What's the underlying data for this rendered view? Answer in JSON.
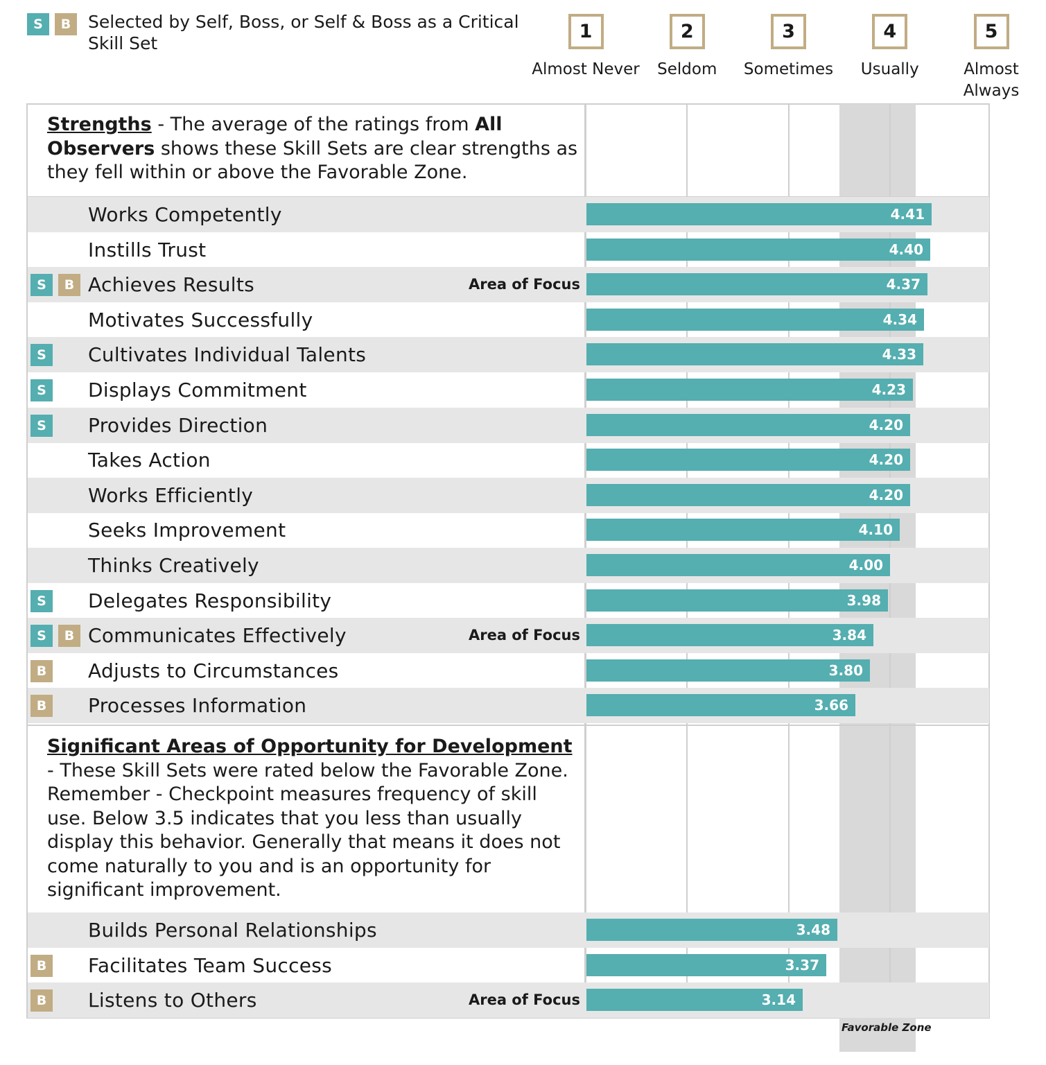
{
  "legend": {
    "badge_s": "S",
    "badge_b": "B",
    "text": "Selected by Self, Boss, or Self & Boss as a Critical Skill Set"
  },
  "scale": [
    {
      "num": "1",
      "label": "Almost Never"
    },
    {
      "num": "2",
      "label": "Seldom"
    },
    {
      "num": "3",
      "label": "Sometimes"
    },
    {
      "num": "4",
      "label": "Usually"
    },
    {
      "num": "5",
      "label": "Almost Always"
    }
  ],
  "strengths": {
    "heading": "Strengths",
    "text_1": " - The average of the ratings from ",
    "bold": "All Observers",
    "text_2": " shows these Skill Sets are clear strengths as they fell within or above the Favorable Zone."
  },
  "opportunities": {
    "heading": "Significant Areas of Opportunity for Development",
    "text": " - These Skill Sets were rated below the Favorable Zone. Remember - Checkpoint measures frequency of skill use. Below 3.5 indicates that you less than usually display this behavior. Generally that means it does not come naturally to you and is an opportunity for significant improvement."
  },
  "focus_label": "Area of Focus",
  "favorable_zone_label": "Favorable Zone",
  "colors": {
    "bar": "#55aeb0",
    "self_badge": "#55aeb0",
    "boss_badge": "#c1ac84",
    "zone": "#d9d9d9",
    "row_shade": "#e6e6e6"
  },
  "chart_data": {
    "type": "bar",
    "orientation": "horizontal",
    "xlim": [
      1,
      5
    ],
    "favorable_zone": [
      3.5,
      4.25
    ],
    "ticks": [
      1,
      2,
      3,
      4,
      5
    ],
    "groups": [
      {
        "name": "Strengths",
        "items": [
          {
            "name": "Works Competently",
            "value": 4.41,
            "value_label": "4.41",
            "self": false,
            "boss": false,
            "focus": false
          },
          {
            "name": "Instills Trust",
            "value": 4.4,
            "value_label": "4.40",
            "self": false,
            "boss": false,
            "focus": false
          },
          {
            "name": "Achieves Results",
            "value": 4.37,
            "value_label": "4.37",
            "self": true,
            "boss": true,
            "focus": true
          },
          {
            "name": "Motivates Successfully",
            "value": 4.34,
            "value_label": "4.34",
            "self": false,
            "boss": false,
            "focus": false
          },
          {
            "name": "Cultivates Individual Talents",
            "value": 4.33,
            "value_label": "4.33",
            "self": true,
            "boss": false,
            "focus": false
          },
          {
            "name": "Displays Commitment",
            "value": 4.23,
            "value_label": "4.23",
            "self": true,
            "boss": false,
            "focus": false
          },
          {
            "name": "Provides Direction",
            "value": 4.2,
            "value_label": "4.20",
            "self": true,
            "boss": false,
            "focus": false
          },
          {
            "name": "Takes Action",
            "value": 4.2,
            "value_label": "4.20",
            "self": false,
            "boss": false,
            "focus": false
          },
          {
            "name": "Works Efficiently",
            "value": 4.2,
            "value_label": "4.20",
            "self": false,
            "boss": false,
            "focus": false
          },
          {
            "name": "Seeks Improvement",
            "value": 4.1,
            "value_label": "4.10",
            "self": false,
            "boss": false,
            "focus": false
          },
          {
            "name": "Thinks Creatively",
            "value": 4.0,
            "value_label": "4.00",
            "self": false,
            "boss": false,
            "focus": false
          },
          {
            "name": "Delegates Responsibility",
            "value": 3.98,
            "value_label": "3.98",
            "self": true,
            "boss": false,
            "focus": false
          },
          {
            "name": "Communicates Effectively",
            "value": 3.84,
            "value_label": "3.84",
            "self": true,
            "boss": true,
            "focus": true
          },
          {
            "name": "Adjusts to Circumstances",
            "value": 3.8,
            "value_label": "3.80",
            "self": false,
            "boss": true,
            "focus": false
          },
          {
            "name": "Processes Information",
            "value": 3.66,
            "value_label": "3.66",
            "self": false,
            "boss": true,
            "focus": false
          }
        ]
      },
      {
        "name": "Significant Areas of Opportunity for Development",
        "items": [
          {
            "name": "Builds Personal Relationships",
            "value": 3.48,
            "value_label": "3.48",
            "self": false,
            "boss": false,
            "focus": false
          },
          {
            "name": "Facilitates Team Success",
            "value": 3.37,
            "value_label": "3.37",
            "self": false,
            "boss": true,
            "focus": false
          },
          {
            "name": "Listens to Others",
            "value": 3.14,
            "value_label": "3.14",
            "self": false,
            "boss": true,
            "focus": true
          }
        ]
      }
    ]
  }
}
